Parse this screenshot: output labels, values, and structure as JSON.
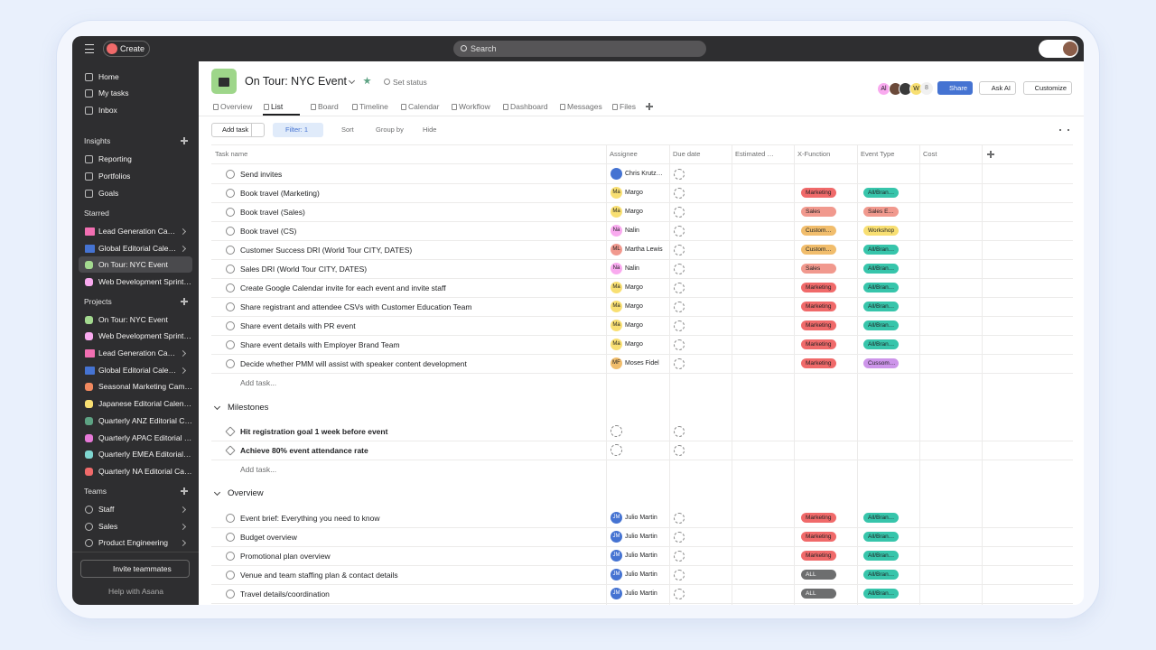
{
  "topbar": {
    "create": "Create",
    "search": "Search"
  },
  "sidebar": {
    "nav": [
      "Home",
      "My tasks",
      "Inbox"
    ],
    "insights": {
      "title": "Insights",
      "items": [
        "Reporting",
        "Portfolios",
        "Goals"
      ]
    },
    "starred": {
      "title": "Starred",
      "items": [
        {
          "label": "Lead Generation Ca…",
          "color": "#f26fb2",
          "folder": true
        },
        {
          "label": "Global Editorial Cale…",
          "color": "#4573d2",
          "folder": true
        },
        {
          "label": "On Tour: NYC Event",
          "color": "#a3d98f",
          "folder": false,
          "active": true
        },
        {
          "label": "Web Development Sprint…",
          "color": "#f9aaef",
          "folder": false
        }
      ]
    },
    "projects": {
      "title": "Projects",
      "items": [
        {
          "label": "On Tour: NYC Event",
          "color": "#a3d98f",
          "folder": false
        },
        {
          "label": "Web Development Sprint…",
          "color": "#f9aaef",
          "folder": false
        },
        {
          "label": "Lead Generation Ca…",
          "color": "#f26fb2",
          "folder": true
        },
        {
          "label": "Global Editorial Cale…",
          "color": "#4573d2",
          "folder": true
        },
        {
          "label": "Seasonal Marketing Cam…",
          "color": "#f1895f",
          "folder": false
        },
        {
          "label": "Japanese Editorial Calen…",
          "color": "#f8df72",
          "folder": false
        },
        {
          "label": "Quarterly ANZ Editorial C…",
          "color": "#5da283",
          "folder": false
        },
        {
          "label": "Quarterly APAC Editorial …",
          "color": "#e779d8",
          "folder": false
        },
        {
          "label": "Quarterly EMEA Editorial…",
          "color": "#7fd6d0",
          "folder": false
        },
        {
          "label": "Quarterly NA Editorial Ca…",
          "color": "#f06a6a",
          "folder": false
        }
      ]
    },
    "teams": {
      "title": "Teams",
      "items": [
        "Staff",
        "Sales",
        "Product Engineering"
      ]
    },
    "invite": "Invite teammates",
    "help": "Help with Asana"
  },
  "project": {
    "title": "On Tour: NYC Event",
    "set_status": "Set status",
    "members": [
      "Al",
      "W"
    ],
    "members_count": "8",
    "share": "Share",
    "ask_ai": "Ask AI",
    "customize": "Customize",
    "tabs": [
      "Overview",
      "List",
      "Board",
      "Timeline",
      "Calendar",
      "Workflow",
      "Dashboard",
      "Messages",
      "Files"
    ]
  },
  "toolbar": {
    "add_task": "Add task",
    "filter": "Filter: 1",
    "sort": "Sort",
    "group_by": "Group by",
    "hide": "Hide"
  },
  "table": {
    "columns": [
      "Task name",
      "Assignee",
      "Due date",
      "Estimated …",
      "X-Function",
      "Event Type",
      "Cost"
    ],
    "add_task": "Add task...",
    "sections": [
      {
        "rows": [
          {
            "task": "Send invites",
            "assignee": "Chris Krutz…",
            "avatar_color": "#4573d2"
          },
          {
            "task": "Book travel (Marketing)",
            "initials": "Ma",
            "assignee": "Margo",
            "avatar_color": "#f8df72",
            "x_function": {
              "text": "Marketing",
              "color": "#f06a6a"
            },
            "event_type": {
              "text": "All/Bran…",
              "color": "#37c5ab"
            }
          },
          {
            "task": "Book travel (Sales)",
            "initials": "Ma",
            "assignee": "Margo",
            "avatar_color": "#f8df72",
            "x_function": {
              "text": "Sales",
              "color": "#f1998e"
            },
            "event_type": {
              "text": "Sales E…",
              "color": "#f1998e"
            }
          },
          {
            "task": "Book travel (CS)",
            "initials": "Na",
            "assignee": "Nalin",
            "avatar_color": "#f9aaef",
            "x_function": {
              "text": "Custom…",
              "color": "#f1bd6c"
            },
            "event_type": {
              "text": "Workshop",
              "color": "#f8df72"
            }
          },
          {
            "task": "Customer Success DRI (World Tour CITY, DATES)",
            "initials": "ML",
            "assignee": "Martha Lewis",
            "avatar_color": "#f1998e",
            "x_function": {
              "text": "Custom…",
              "color": "#f1bd6c"
            },
            "event_type": {
              "text": "All/Bran…",
              "color": "#37c5ab"
            }
          },
          {
            "task": "Sales DRI (World Tour CITY, DATES)",
            "initials": "Na",
            "assignee": "Nalin",
            "avatar_color": "#f9aaef",
            "x_function": {
              "text": "Sales",
              "color": "#f1998e"
            },
            "event_type": {
              "text": "All/Bran…",
              "color": "#37c5ab"
            }
          },
          {
            "task": "Create Google Calendar invite for each event and invite staff",
            "initials": "Ma",
            "assignee": "Margo",
            "avatar_color": "#f8df72",
            "x_function": {
              "text": "Marketing",
              "color": "#f06a6a"
            },
            "event_type": {
              "text": "All/Bran…",
              "color": "#37c5ab"
            }
          },
          {
            "task": "Share registrant and attendee CSVs with Customer Education Team",
            "initials": "Ma",
            "assignee": "Margo",
            "avatar_color": "#f8df72",
            "x_function": {
              "text": "Marketing",
              "color": "#f06a6a"
            },
            "event_type": {
              "text": "All/Bran…",
              "color": "#37c5ab"
            }
          },
          {
            "task": "Share event details with PR event",
            "initials": "Ma",
            "assignee": "Margo",
            "avatar_color": "#f8df72",
            "x_function": {
              "text": "Marketing",
              "color": "#f06a6a"
            },
            "event_type": {
              "text": "All/Bran…",
              "color": "#37c5ab"
            }
          },
          {
            "task": "Share event details with Employer Brand Team",
            "initials": "Ma",
            "assignee": "Margo",
            "avatar_color": "#f8df72",
            "x_function": {
              "text": "Marketing",
              "color": "#f06a6a"
            },
            "event_type": {
              "text": "All/Bran…",
              "color": "#37c5ab"
            }
          },
          {
            "task": "Decide whether PMM will assist with speaker content development",
            "initials": "MF",
            "assignee": "Moses Fidel",
            "avatar_color": "#f1bd6c",
            "x_function": {
              "text": "Marketing",
              "color": "#f06a6a"
            },
            "event_type": {
              "text": "Cussom…",
              "color": "#cd95ea"
            }
          }
        ]
      },
      {
        "name": "Milestones",
        "rows": [
          {
            "task": "Hit registration goal 1 week before event",
            "milestone": true
          },
          {
            "task": "Achieve 80% event attendance rate",
            "milestone": true
          }
        ]
      },
      {
        "name": "Overview",
        "rows": [
          {
            "task": "Event brief: Everything you need to know",
            "initials": "JM",
            "assignee": "Julio Martin",
            "avatar_color": "#4573d2",
            "x_function": {
              "text": "Marketing",
              "color": "#f06a6a"
            },
            "event_type": {
              "text": "All/Bran…",
              "color": "#37c5ab"
            }
          },
          {
            "task": "Budget overview",
            "initials": "JM",
            "assignee": "Julio Martin",
            "avatar_color": "#4573d2",
            "x_function": {
              "text": "Marketing",
              "color": "#f06a6a"
            },
            "event_type": {
              "text": "All/Bran…",
              "color": "#37c5ab"
            }
          },
          {
            "task": "Promotional plan overview",
            "initials": "JM",
            "assignee": "Julio Martin",
            "avatar_color": "#4573d2",
            "x_function": {
              "text": "Marketing",
              "color": "#f06a6a"
            },
            "event_type": {
              "text": "All/Bran…",
              "color": "#37c5ab"
            }
          },
          {
            "task": "Venue and team staffing plan & contact details",
            "initials": "JM",
            "assignee": "Julio Martin",
            "avatar_color": "#4573d2",
            "x_function": {
              "text": "ALL",
              "color": "#6d6e6f"
            },
            "event_type": {
              "text": "All/Bran…",
              "color": "#37c5ab"
            }
          },
          {
            "task": "Travel details/coordination",
            "initials": "JM",
            "assignee": "Julio Martin",
            "avatar_color": "#4573d2",
            "x_function": {
              "text": "ALL",
              "color": "#6d6e6f"
            },
            "event_type": {
              "text": "All/Bran…",
              "color": "#37c5ab"
            }
          }
        ]
      }
    ]
  }
}
